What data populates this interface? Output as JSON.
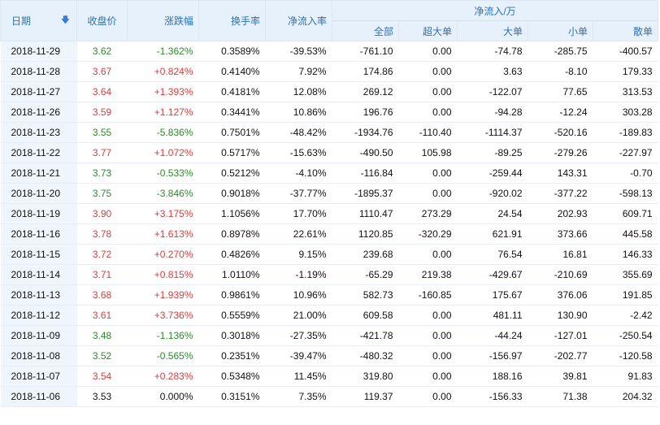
{
  "headers": {
    "date": "日期",
    "close": "收盘价",
    "change": "涨跌幅",
    "turnover": "换手率",
    "net_rate": "净流入率",
    "net_flow_group": "净流入/万",
    "all": "全部",
    "super": "超大单",
    "large": "大单",
    "small": "小单",
    "retail": "散单"
  },
  "colors": {
    "up": "#e03a3a",
    "down": "#2a8a2a",
    "header_text": "#2b71b8",
    "header_bg": "#e7f1fb"
  },
  "icons": {
    "sort": "sort-down-arrow-icon"
  },
  "rows": [
    {
      "date": "2018-11-29",
      "close": "3.62",
      "change": "-1.362%",
      "turnover": "0.3589%",
      "net_rate": "-39.53%",
      "all": "-761.10",
      "super": "0.00",
      "large": "-74.78",
      "small": "-285.75",
      "retail": "-400.57",
      "dir": "down"
    },
    {
      "date": "2018-11-28",
      "close": "3.67",
      "change": "+0.824%",
      "turnover": "0.4140%",
      "net_rate": "7.92%",
      "all": "174.86",
      "super": "0.00",
      "large": "3.63",
      "small": "-8.10",
      "retail": "179.33",
      "dir": "up"
    },
    {
      "date": "2018-11-27",
      "close": "3.64",
      "change": "+1.393%",
      "turnover": "0.4181%",
      "net_rate": "12.08%",
      "all": "269.12",
      "super": "0.00",
      "large": "-122.07",
      "small": "77.65",
      "retail": "313.53",
      "dir": "up"
    },
    {
      "date": "2018-11-26",
      "close": "3.59",
      "change": "+1.127%",
      "turnover": "0.3441%",
      "net_rate": "10.86%",
      "all": "196.76",
      "super": "0.00",
      "large": "-94.28",
      "small": "-12.24",
      "retail": "303.28",
      "dir": "up"
    },
    {
      "date": "2018-11-23",
      "close": "3.55",
      "change": "-5.836%",
      "turnover": "0.7501%",
      "net_rate": "-48.42%",
      "all": "-1934.76",
      "super": "-110.40",
      "large": "-1114.37",
      "small": "-520.16",
      "retail": "-189.83",
      "dir": "down"
    },
    {
      "date": "2018-11-22",
      "close": "3.77",
      "change": "+1.072%",
      "turnover": "0.5717%",
      "net_rate": "-15.63%",
      "all": "-490.50",
      "super": "105.98",
      "large": "-89.25",
      "small": "-279.26",
      "retail": "-227.97",
      "dir": "up"
    },
    {
      "date": "2018-11-21",
      "close": "3.73",
      "change": "-0.533%",
      "turnover": "0.5212%",
      "net_rate": "-4.10%",
      "all": "-116.84",
      "super": "0.00",
      "large": "-259.44",
      "small": "143.31",
      "retail": "-0.70",
      "dir": "down"
    },
    {
      "date": "2018-11-20",
      "close": "3.75",
      "change": "-3.846%",
      "turnover": "0.9018%",
      "net_rate": "-37.77%",
      "all": "-1895.37",
      "super": "0.00",
      "large": "-920.02",
      "small": "-377.22",
      "retail": "-598.13",
      "dir": "down"
    },
    {
      "date": "2018-11-19",
      "close": "3.90",
      "change": "+3.175%",
      "turnover": "1.1056%",
      "net_rate": "17.70%",
      "all": "1110.47",
      "super": "273.29",
      "large": "24.54",
      "small": "202.93",
      "retail": "609.71",
      "dir": "up"
    },
    {
      "date": "2018-11-16",
      "close": "3.78",
      "change": "+1.613%",
      "turnover": "0.8978%",
      "net_rate": "22.61%",
      "all": "1120.85",
      "super": "-320.29",
      "large": "621.91",
      "small": "373.66",
      "retail": "445.58",
      "dir": "up"
    },
    {
      "date": "2018-11-15",
      "close": "3.72",
      "change": "+0.270%",
      "turnover": "0.4826%",
      "net_rate": "9.15%",
      "all": "239.68",
      "super": "0.00",
      "large": "76.54",
      "small": "16.81",
      "retail": "146.33",
      "dir": "up"
    },
    {
      "date": "2018-11-14",
      "close": "3.71",
      "change": "+0.815%",
      "turnover": "1.0110%",
      "net_rate": "-1.19%",
      "all": "-65.29",
      "super": "219.38",
      "large": "-429.67",
      "small": "-210.69",
      "retail": "355.69",
      "dir": "up"
    },
    {
      "date": "2018-11-13",
      "close": "3.68",
      "change": "+1.939%",
      "turnover": "0.9861%",
      "net_rate": "10.96%",
      "all": "582.73",
      "super": "-160.85",
      "large": "175.67",
      "small": "376.06",
      "retail": "191.85",
      "dir": "up"
    },
    {
      "date": "2018-11-12",
      "close": "3.61",
      "change": "+3.736%",
      "turnover": "0.5559%",
      "net_rate": "21.00%",
      "all": "609.58",
      "super": "0.00",
      "large": "481.11",
      "small": "130.90",
      "retail": "-2.42",
      "dir": "up"
    },
    {
      "date": "2018-11-09",
      "close": "3.48",
      "change": "-1.136%",
      "turnover": "0.3018%",
      "net_rate": "-27.35%",
      "all": "-421.78",
      "super": "0.00",
      "large": "-44.24",
      "small": "-127.01",
      "retail": "-250.54",
      "dir": "down"
    },
    {
      "date": "2018-11-08",
      "close": "3.52",
      "change": "-0.565%",
      "turnover": "0.2351%",
      "net_rate": "-39.47%",
      "all": "-480.32",
      "super": "0.00",
      "large": "-156.97",
      "small": "-202.77",
      "retail": "-120.58",
      "dir": "down"
    },
    {
      "date": "2018-11-07",
      "close": "3.54",
      "change": "+0.283%",
      "turnover": "0.5348%",
      "net_rate": "11.45%",
      "all": "319.80",
      "super": "0.00",
      "large": "188.16",
      "small": "39.81",
      "retail": "91.83",
      "dir": "up"
    },
    {
      "date": "2018-11-06",
      "close": "3.53",
      "change": "0.000%",
      "turnover": "0.3151%",
      "net_rate": "7.35%",
      "all": "119.37",
      "super": "0.00",
      "large": "-156.33",
      "small": "71.38",
      "retail": "204.32",
      "dir": "flat"
    }
  ]
}
